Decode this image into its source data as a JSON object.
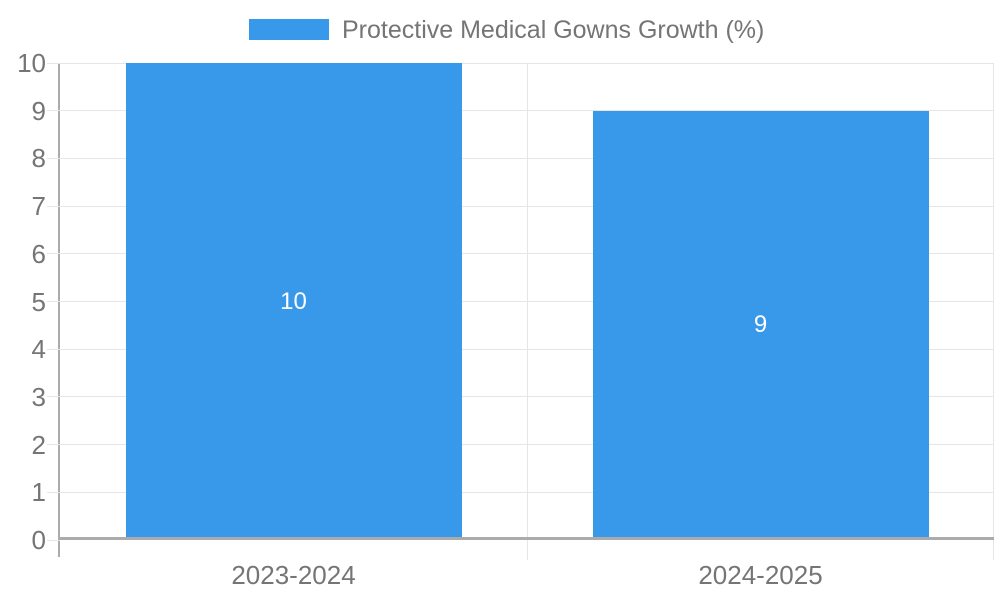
{
  "chart_data": {
    "type": "bar",
    "title": "Protective Medical Gowns Growth (%)",
    "categories": [
      "2023-2024",
      "2024-2025"
    ],
    "series": [
      {
        "name": "Protective Medical Gowns Growth (%)",
        "values": [
          10,
          9
        ]
      }
    ],
    "data_labels": [
      "10",
      "9"
    ],
    "xlabel": "",
    "ylabel": "",
    "ylim": [
      0,
      10
    ],
    "yticks": [
      "0",
      "1",
      "2",
      "3",
      "4",
      "5",
      "6",
      "7",
      "8",
      "9",
      "10"
    ],
    "grid": true,
    "legend_position": "top"
  },
  "legend": {
    "label": "Protective Medical Gowns Growth (%)"
  },
  "colors": {
    "bar": "#3899ea",
    "legend_text": "#757575",
    "axis_text": "#757575",
    "data_label_text": "#ffffff",
    "gridline": "#e6e6e6",
    "axis_line": "#ababab",
    "y_axis_line": "#ababab",
    "background": "#ffffff"
  }
}
